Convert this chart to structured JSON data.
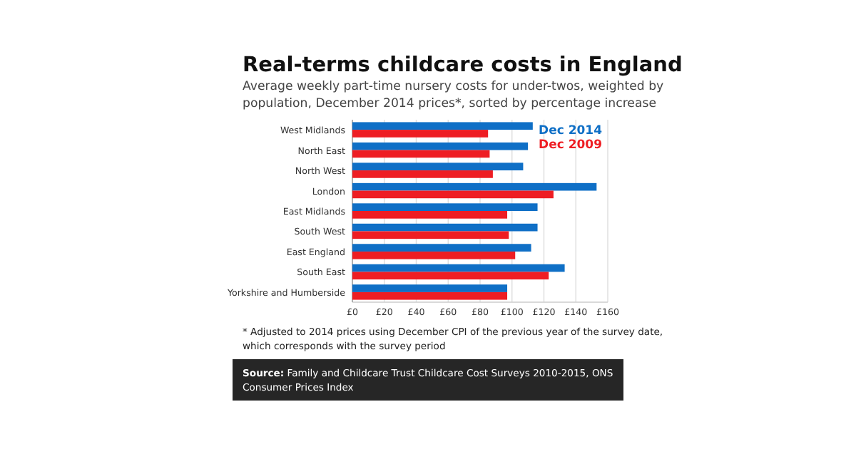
{
  "chart_data": {
    "type": "bar",
    "orientation": "horizontal",
    "title": "Real-terms childcare costs in England",
    "subtitle": "Average weekly part-time nursery costs for under-twos, weighted by population, December 2014 prices*, sorted by percentage increase",
    "categories": [
      "West Midlands",
      "North East",
      "North West",
      "London",
      "East Midlands",
      "South West",
      "East England",
      "South East",
      "Yorkshire and Humberside"
    ],
    "series": [
      {
        "name": "Dec 2014",
        "color": "#0f6fc6",
        "values": [
          113,
          110,
          107,
          153,
          116,
          116,
          112,
          133,
          97
        ]
      },
      {
        "name": "Dec 2009",
        "color": "#ee1d23",
        "values": [
          85,
          86,
          88,
          126,
          97,
          98,
          102,
          123,
          97
        ]
      }
    ],
    "xlim": [
      0,
      160
    ],
    "xticks": [
      {
        "value": 0,
        "label": "£0"
      },
      {
        "value": 20,
        "label": "£20"
      },
      {
        "value": 40,
        "label": "£40"
      },
      {
        "value": 60,
        "label": "£60"
      },
      {
        "value": 80,
        "label": "£80"
      },
      {
        "value": 100,
        "label": "£100"
      },
      {
        "value": 120,
        "label": "£120"
      },
      {
        "value": 140,
        "label": "£140"
      },
      {
        "value": 160,
        "label": "£160"
      }
    ],
    "grid": "x",
    "legend": "top right",
    "annotations": [
      "* Adjusted to 2014 prices using December CPI of the previous year of the survey date, which corresponds with the survey period",
      "Source: Family and Childcare Trust Childcare Cost Surveys 2010-2015, ONS Consumer Prices Index"
    ]
  }
}
